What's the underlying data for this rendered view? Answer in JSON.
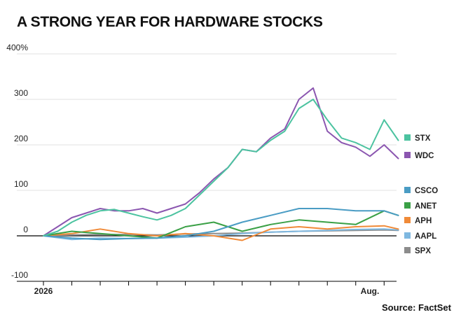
{
  "chart_data": {
    "type": "line",
    "title": "A STRONG YEAR FOR HARDWARE STOCKS",
    "source": "Source: FactSet",
    "ylim": [
      -100,
      400
    ],
    "y_ticks": [
      {
        "value": 400,
        "label": "400%"
      },
      {
        "value": 300,
        "label": "300"
      },
      {
        "value": 200,
        "label": "200"
      },
      {
        "value": 100,
        "label": "100"
      },
      {
        "value": 0,
        "label": "0"
      },
      {
        "value": -100,
        "label": "-100"
      }
    ],
    "x_ticks": [
      {
        "t": 0,
        "label": "2026"
      },
      {
        "t": 11.5,
        "label": "Aug."
      }
    ],
    "grid": "horizontal",
    "legend_placement": "right",
    "series": [
      {
        "name": "STX",
        "color": "#4cc3a0",
        "points": [
          [
            0,
            0
          ],
          [
            0.5,
            10
          ],
          [
            1,
            30
          ],
          [
            1.5,
            45
          ],
          [
            2,
            55
          ],
          [
            2.5,
            58
          ],
          [
            3,
            50
          ],
          [
            3.5,
            42
          ],
          [
            4,
            35
          ],
          [
            4.5,
            45
          ],
          [
            5,
            60
          ],
          [
            5.5,
            90
          ],
          [
            6,
            120
          ],
          [
            6.5,
            150
          ],
          [
            7,
            190
          ],
          [
            7.5,
            185
          ],
          [
            8,
            210
          ],
          [
            8.5,
            230
          ],
          [
            9,
            280
          ],
          [
            9.5,
            300
          ],
          [
            10,
            255
          ],
          [
            10.5,
            215
          ],
          [
            11,
            205
          ],
          [
            11.5,
            190
          ],
          [
            12,
            255
          ],
          [
            12.5,
            210
          ]
        ]
      },
      {
        "name": "WDC",
        "color": "#8b56b0",
        "points": [
          [
            0,
            0
          ],
          [
            0.5,
            20
          ],
          [
            1,
            40
          ],
          [
            1.5,
            50
          ],
          [
            2,
            60
          ],
          [
            2.5,
            55
          ],
          [
            3,
            55
          ],
          [
            3.5,
            60
          ],
          [
            4,
            50
          ],
          [
            4.5,
            60
          ],
          [
            5,
            70
          ],
          [
            5.5,
            95
          ],
          [
            6,
            125
          ],
          [
            6.5,
            150
          ],
          [
            7,
            190
          ],
          [
            7.5,
            185
          ],
          [
            8,
            215
          ],
          [
            8.5,
            235
          ],
          [
            9,
            300
          ],
          [
            9.5,
            325
          ],
          [
            10,
            230
          ],
          [
            10.5,
            205
          ],
          [
            11,
            195
          ],
          [
            11.5,
            175
          ],
          [
            12,
            200
          ],
          [
            12.5,
            170
          ]
        ]
      },
      {
        "name": "CSCO",
        "color": "#4a9cc4",
        "points": [
          [
            0,
            0
          ],
          [
            1,
            -5
          ],
          [
            2,
            -8
          ],
          [
            3,
            -6
          ],
          [
            4,
            -5
          ],
          [
            5,
            0
          ],
          [
            6,
            10
          ],
          [
            7,
            30
          ],
          [
            8,
            45
          ],
          [
            9,
            60
          ],
          [
            10,
            60
          ],
          [
            11,
            55
          ],
          [
            12,
            55
          ],
          [
            12.5,
            45
          ]
        ]
      },
      {
        "name": "ANET",
        "color": "#3aa046",
        "points": [
          [
            0,
            0
          ],
          [
            1,
            10
          ],
          [
            2,
            5
          ],
          [
            3,
            0
          ],
          [
            4,
            -5
          ],
          [
            5,
            20
          ],
          [
            6,
            30
          ],
          [
            7,
            10
          ],
          [
            8,
            25
          ],
          [
            9,
            35
          ],
          [
            10,
            30
          ],
          [
            11,
            25
          ],
          [
            12,
            55
          ],
          [
            12.5,
            45
          ]
        ]
      },
      {
        "name": "APH",
        "color": "#f08a38",
        "points": [
          [
            0,
            0
          ],
          [
            1,
            5
          ],
          [
            2,
            15
          ],
          [
            3,
            5
          ],
          [
            4,
            0
          ],
          [
            5,
            5
          ],
          [
            6,
            0
          ],
          [
            7,
            -10
          ],
          [
            8,
            15
          ],
          [
            9,
            20
          ],
          [
            10,
            15
          ],
          [
            11,
            20
          ],
          [
            12,
            22
          ],
          [
            12.5,
            15
          ]
        ]
      },
      {
        "name": "AAPL",
        "color": "#7fb8e0",
        "points": [
          [
            0,
            0
          ],
          [
            1,
            -8
          ],
          [
            2,
            -5
          ],
          [
            3,
            -6
          ],
          [
            4,
            -5
          ],
          [
            5,
            -3
          ],
          [
            6,
            0
          ],
          [
            7,
            5
          ],
          [
            8,
            8
          ],
          [
            9,
            10
          ],
          [
            10,
            12
          ],
          [
            11,
            14
          ],
          [
            12,
            15
          ],
          [
            12.5,
            13
          ]
        ]
      },
      {
        "name": "SPX",
        "color": "#8c8c8c",
        "points": [
          [
            0,
            0
          ],
          [
            1,
            2
          ],
          [
            2,
            3
          ],
          [
            3,
            3
          ],
          [
            4,
            2
          ],
          [
            5,
            4
          ],
          [
            6,
            5
          ],
          [
            7,
            6
          ],
          [
            8,
            8
          ],
          [
            9,
            10
          ],
          [
            10,
            11
          ],
          [
            11,
            12
          ],
          [
            12,
            13
          ],
          [
            12.5,
            12
          ]
        ]
      }
    ]
  }
}
